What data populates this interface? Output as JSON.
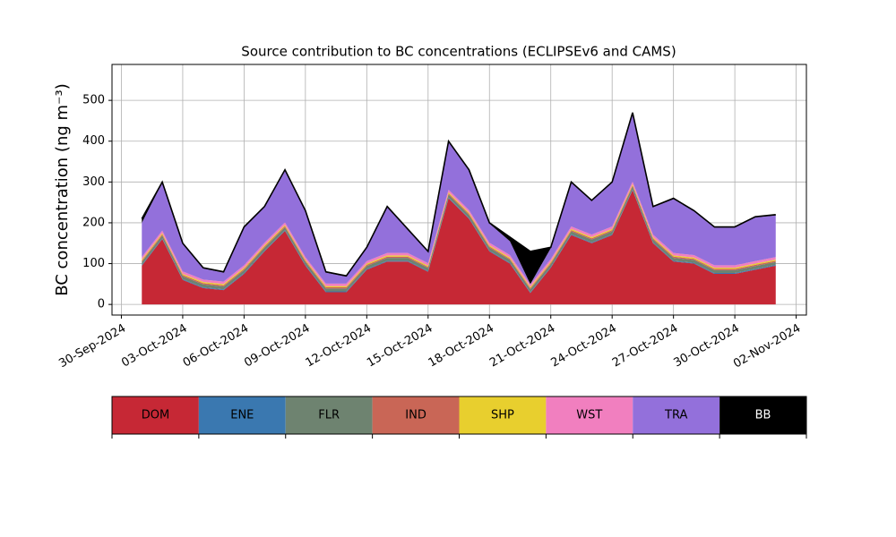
{
  "chart_data": {
    "type": "stacked_area",
    "title": "Source contribution to BC concentrations (ECLIPSEv6 and CAMS)",
    "y_label": "BC concentration (ng m⁻³)",
    "x": [
      "2024-10-01",
      "2024-10-02",
      "2024-10-03",
      "2024-10-04",
      "2024-10-05",
      "2024-10-06",
      "2024-10-07",
      "2024-10-08",
      "2024-10-09",
      "2024-10-10",
      "2024-10-11",
      "2024-10-12",
      "2024-10-13",
      "2024-10-14",
      "2024-10-15",
      "2024-10-16",
      "2024-10-17",
      "2024-10-18",
      "2024-10-19",
      "2024-10-20",
      "2024-10-21",
      "2024-10-22",
      "2024-10-23",
      "2024-10-24",
      "2024-10-25",
      "2024-10-26",
      "2024-10-27",
      "2024-10-28",
      "2024-10-29",
      "2024-10-30",
      "2024-10-31",
      "2024-11-01"
    ],
    "series": [
      {
        "name": "DOM",
        "color": "#c62835",
        "values": [
          95,
          160,
          60,
          40,
          35,
          75,
          130,
          180,
          95,
          30,
          30,
          85,
          105,
          105,
          80,
          260,
          210,
          130,
          100,
          28,
          90,
          170,
          150,
          170,
          280,
          150,
          105,
          100,
          75,
          75,
          85,
          95
        ]
      },
      {
        "name": "ENE",
        "color": "#3a78b0",
        "values": [
          2,
          2,
          2,
          2,
          2,
          2,
          2,
          2,
          2,
          2,
          2,
          2,
          2,
          2,
          2,
          2,
          2,
          2,
          2,
          2,
          2,
          2,
          2,
          2,
          2,
          2,
          2,
          2,
          2,
          2,
          2,
          2
        ]
      },
      {
        "name": "FLR",
        "color": "#6e8370",
        "values": [
          7,
          7,
          7,
          7,
          7,
          7,
          7,
          7,
          7,
          7,
          7,
          7,
          7,
          7,
          7,
          7,
          7,
          7,
          7,
          7,
          7,
          7,
          7,
          7,
          7,
          7,
          7,
          7,
          7,
          7,
          7,
          7
        ]
      },
      {
        "name": "IND",
        "color": "#c96656",
        "values": [
          3,
          3,
          3,
          3,
          3,
          3,
          3,
          3,
          3,
          3,
          3,
          3,
          3,
          3,
          3,
          3,
          3,
          3,
          3,
          3,
          3,
          3,
          3,
          3,
          3,
          3,
          3,
          3,
          3,
          3,
          3,
          3
        ]
      },
      {
        "name": "SHP",
        "color": "#e8cf2e",
        "values": [
          3,
          3,
          3,
          3,
          3,
          3,
          3,
          3,
          3,
          3,
          3,
          3,
          3,
          3,
          3,
          3,
          3,
          3,
          3,
          3,
          3,
          3,
          3,
          3,
          3,
          3,
          3,
          3,
          3,
          3,
          3,
          3
        ]
      },
      {
        "name": "WST",
        "color": "#f17fbf",
        "values": [
          6,
          6,
          6,
          6,
          6,
          6,
          6,
          6,
          6,
          6,
          6,
          6,
          6,
          6,
          6,
          6,
          6,
          6,
          6,
          6,
          6,
          6,
          6,
          6,
          6,
          6,
          6,
          6,
          6,
          6,
          6,
          6
        ]
      },
      {
        "name": "TRA",
        "color": "#9370db",
        "values": [
          84,
          117,
          67,
          27,
          22,
          92,
          87,
          127,
          112,
          27,
          17,
          32,
          112,
          57,
          27,
          117,
          97,
          47,
          34,
          1,
          27,
          107,
          82,
          107,
          167,
          67,
          132,
          107,
          92,
          92,
          107,
          102
        ]
      },
      {
        "name": "BB",
        "color": "#000000",
        "values": [
          10,
          2,
          2,
          2,
          2,
          2,
          2,
          2,
          2,
          2,
          2,
          2,
          2,
          2,
          2,
          2,
          2,
          2,
          10,
          80,
          2,
          2,
          2,
          2,
          2,
          2,
          2,
          2,
          2,
          2,
          2,
          2
        ]
      }
    ],
    "xlim": [
      "2024-09-29T13:00",
      "2024-11-02T12:00"
    ],
    "xticks": [
      {
        "value": "2024-09-30",
        "label": "30-Sep-2024"
      },
      {
        "value": "2024-10-03",
        "label": "03-Oct-2024"
      },
      {
        "value": "2024-10-06",
        "label": "06-Oct-2024"
      },
      {
        "value": "2024-10-09",
        "label": "09-Oct-2024"
      },
      {
        "value": "2024-10-12",
        "label": "12-Oct-2024"
      },
      {
        "value": "2024-10-15",
        "label": "15-Oct-2024"
      },
      {
        "value": "2024-10-18",
        "label": "18-Oct-2024"
      },
      {
        "value": "2024-10-21",
        "label": "21-Oct-2024"
      },
      {
        "value": "2024-10-24",
        "label": "24-Oct-2024"
      },
      {
        "value": "2024-10-27",
        "label": "27-Oct-2024"
      },
      {
        "value": "2024-10-30",
        "label": "30-Oct-2024"
      },
      {
        "value": "2024-11-02",
        "label": "02-Nov-2024"
      }
    ],
    "ylim": [
      -26,
      588
    ],
    "yticks": [
      0,
      100,
      200,
      300,
      400,
      500
    ],
    "grid": true
  }
}
